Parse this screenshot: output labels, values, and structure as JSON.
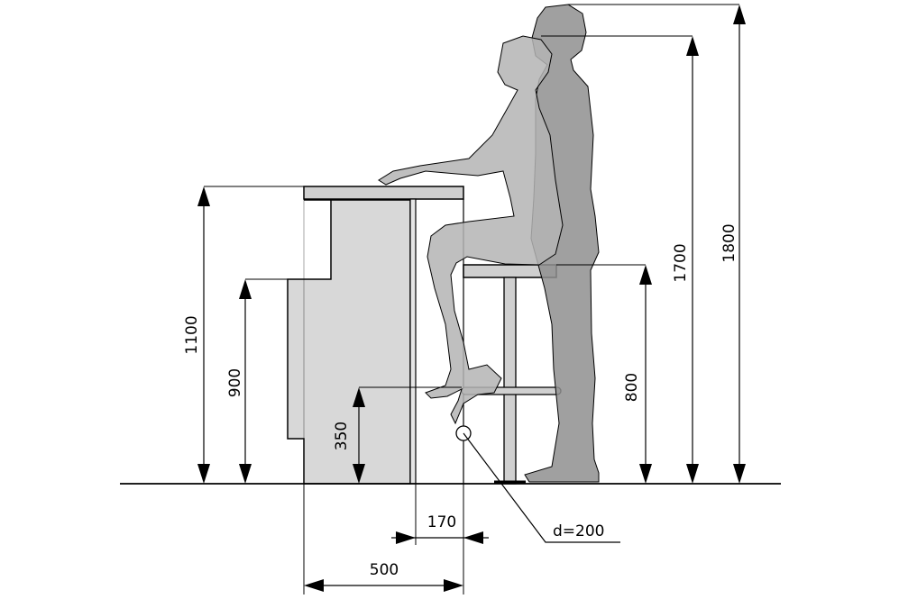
{
  "colors": {
    "line": "#000000",
    "counter_fill": "#d8d8d8",
    "counter_top": "#cfcfcf",
    "seated_person": "#b4b4b4",
    "standing_person": "#8f8f8f",
    "stool": "#c8c8c8",
    "background": "#ffffff"
  },
  "icons": {
    "arrowhead": "filled-triangle-arrow-icon"
  },
  "dimensions": {
    "counter_height": "1100",
    "lower_shelf_height": "900",
    "footrest_height": "350",
    "stool_seat_height": "800",
    "seated_eye_height": "1700",
    "standing_height": "1800",
    "overhang_width": "170",
    "counter_depth": "500",
    "footrest_diameter": "d=200"
  }
}
